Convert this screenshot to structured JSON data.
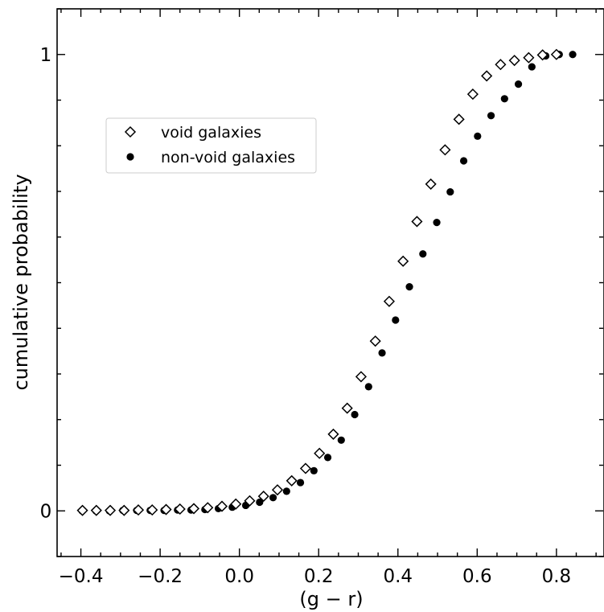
{
  "chart_data": {
    "type": "scatter",
    "xlabel": "(g − r)",
    "ylabel": "cumulative probability",
    "xlim": [
      -0.46,
      0.92
    ],
    "ylim": [
      -0.1,
      1.1
    ],
    "x_ticks": [
      -0.4,
      -0.2,
      0.0,
      0.2,
      0.4,
      0.6,
      0.8
    ],
    "x_tick_labels": [
      "−0.4",
      "−0.2",
      "0.0",
      "0.2",
      "0.4",
      "0.6",
      "0.8"
    ],
    "y_ticks": [
      0,
      1
    ],
    "y_tick_labels": [
      "0",
      "1"
    ],
    "legend_position": "upper-left",
    "grid": false,
    "series": [
      {
        "name": "void galaxies",
        "marker": "open-diamond",
        "color": "#000000",
        "x": [
          -0.396,
          -0.361,
          -0.326,
          -0.291,
          -0.255,
          -0.22,
          -0.185,
          -0.15,
          -0.115,
          -0.08,
          -0.044,
          -0.009,
          0.026,
          0.061,
          0.096,
          0.132,
          0.167,
          0.202,
          0.237,
          0.272,
          0.307,
          0.343,
          0.378,
          0.413,
          0.448,
          0.483,
          0.519,
          0.554,
          0.589,
          0.624,
          0.659,
          0.694,
          0.73,
          0.765,
          0.8
        ],
        "y": [
          0.001,
          0.001,
          0.001,
          0.001,
          0.002,
          0.002,
          0.003,
          0.004,
          0.005,
          0.007,
          0.01,
          0.015,
          0.022,
          0.032,
          0.046,
          0.066,
          0.093,
          0.126,
          0.168,
          0.225,
          0.294,
          0.372,
          0.459,
          0.547,
          0.634,
          0.716,
          0.791,
          0.858,
          0.913,
          0.953,
          0.978,
          0.987,
          0.993,
          0.999,
          1.0
        ]
      },
      {
        "name": "non-void galaxies",
        "marker": "filled-circle",
        "color": "#000000",
        "x": [
          -0.397,
          -0.362,
          -0.328,
          -0.294,
          -0.259,
          -0.225,
          -0.19,
          -0.156,
          -0.122,
          -0.087,
          -0.053,
          -0.018,
          0.016,
          0.051,
          0.085,
          0.119,
          0.154,
          0.188,
          0.223,
          0.257,
          0.291,
          0.326,
          0.36,
          0.394,
          0.429,
          0.463,
          0.498,
          0.532,
          0.566,
          0.601,
          0.635,
          0.669,
          0.704,
          0.738,
          0.773,
          0.807,
          0.841
        ],
        "y": [
          0.0,
          0.0,
          0.0,
          0.001,
          0.001,
          0.001,
          0.001,
          0.002,
          0.002,
          0.003,
          0.005,
          0.008,
          0.012,
          0.019,
          0.029,
          0.043,
          0.062,
          0.088,
          0.117,
          0.155,
          0.211,
          0.272,
          0.346,
          0.418,
          0.491,
          0.563,
          0.632,
          0.699,
          0.767,
          0.821,
          0.866,
          0.903,
          0.935,
          0.973,
          0.997,
          1.0,
          1.0
        ]
      }
    ]
  }
}
